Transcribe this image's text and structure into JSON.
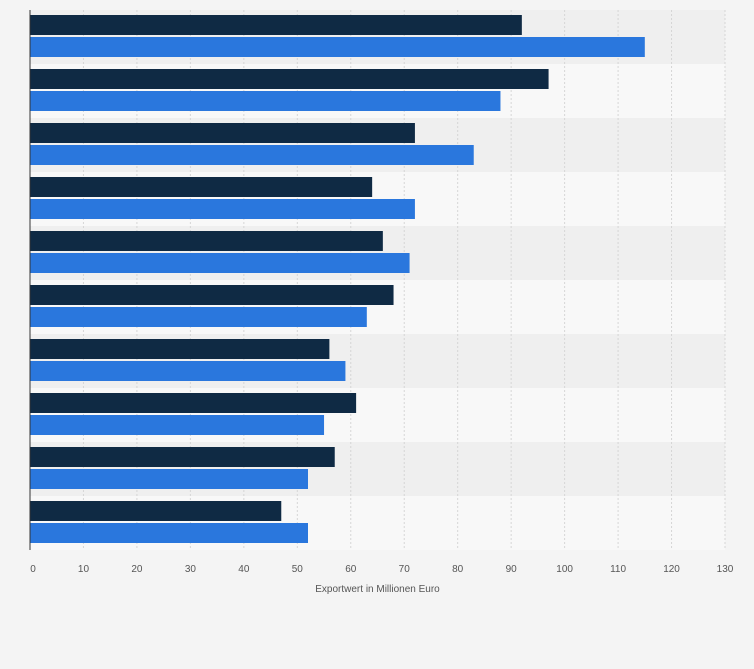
{
  "chart_data": {
    "type": "bar",
    "orientation": "horizontal",
    "categories": [
      "",
      "",
      "",
      "",
      "",
      "",
      "",
      "",
      "",
      ""
    ],
    "series": [
      {
        "color": "#0f2a44",
        "values": [
          92,
          97,
          72,
          64,
          66,
          68,
          56,
          61,
          57,
          47
        ]
      },
      {
        "color": "#2a77dd",
        "values": [
          115,
          88,
          83,
          72,
          71,
          63,
          59,
          55,
          52,
          52
        ]
      }
    ],
    "xlim": [
      0,
      130
    ],
    "xticks": [
      0,
      10,
      20,
      30,
      40,
      50,
      60,
      70,
      80,
      90,
      100,
      110,
      120,
      130
    ],
    "xlabel": "Exportwert in Millionen Euro",
    "ylabel": "",
    "title": "",
    "grid": true,
    "legend": "none",
    "colors": {
      "page_bg": "#f4f4f4",
      "band_dark": "#efefef",
      "band_light": "#f8f8f8",
      "grid": "#d6d6d6",
      "axis": "#333333"
    }
  }
}
